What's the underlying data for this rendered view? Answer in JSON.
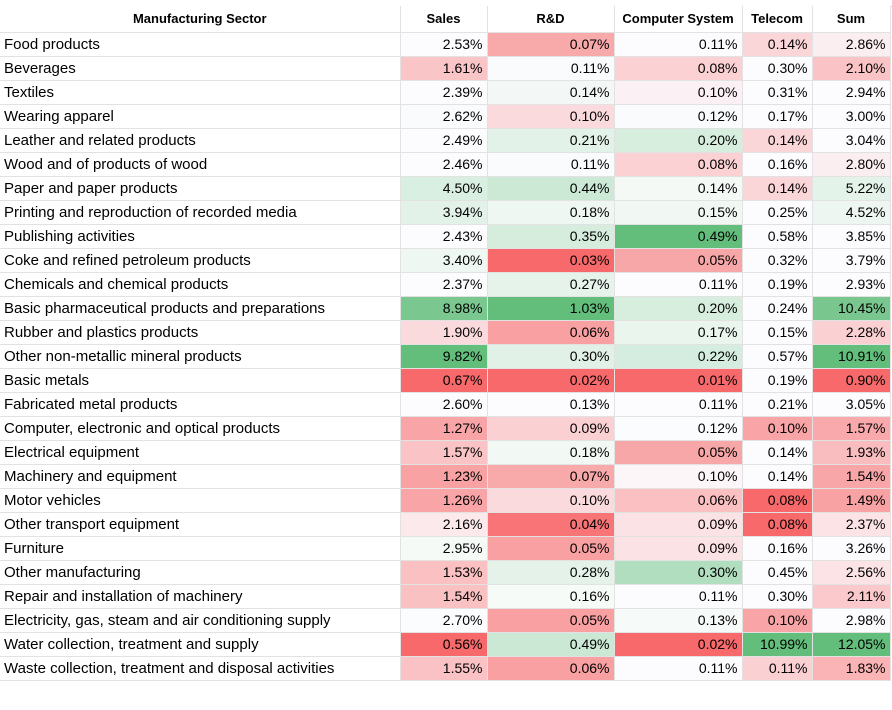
{
  "columns": [
    "Manufacturing Sector",
    "Sales",
    "R&D",
    "Computer System",
    "Telecom",
    "Sum"
  ],
  "rows": [
    {
      "sector": "Food products",
      "vals": [
        "2.53%",
        "0.07%",
        "0.11%",
        "0.14%",
        "2.86%"
      ],
      "bg": [
        "#fcfcff",
        "#f8a9aa",
        "#fcfcff",
        "#fbd6d8",
        "#fbeef1"
      ]
    },
    {
      "sector": "Beverages",
      "vals": [
        "1.61%",
        "0.11%",
        "0.08%",
        "0.30%",
        "2.10%"
      ],
      "bg": [
        "#fac5c7",
        "#fafbfd",
        "#fbd1d3",
        "#fcfcff",
        "#fac3c5"
      ]
    },
    {
      "sector": "Textiles",
      "vals": [
        "2.39%",
        "0.14%",
        "0.10%",
        "0.31%",
        "2.94%"
      ],
      "bg": [
        "#fcfbfe",
        "#f3f8f6",
        "#fbf1f4",
        "#fcfcff",
        "#fcfcff"
      ]
    },
    {
      "sector": "Wearing apparel",
      "vals": [
        "2.62%",
        "0.10%",
        "0.12%",
        "0.17%",
        "3.00%"
      ],
      "bg": [
        "#f9fbfc",
        "#fbdadd",
        "#f9fbfc",
        "#fcfcff",
        "#fcfcff"
      ]
    },
    {
      "sector": "Leather and related products",
      "vals": [
        "2.49%",
        "0.21%",
        "0.20%",
        "0.14%",
        "3.04%"
      ],
      "bg": [
        "#fcfcff",
        "#e3f2e8",
        "#d7eedf",
        "#fbd6d8",
        "#fcfcff"
      ]
    },
    {
      "sector": "Wood and of products of wood",
      "vals": [
        "2.46%",
        "0.11%",
        "0.08%",
        "0.16%",
        "2.80%"
      ],
      "bg": [
        "#fcfcff",
        "#fafbfd",
        "#fbd1d3",
        "#fcfcff",
        "#fbeef1"
      ]
    },
    {
      "sector": "Paper and paper products",
      "vals": [
        "4.50%",
        "0.44%",
        "0.14%",
        "0.14%",
        "5.22%"
      ],
      "bg": [
        "#d9efe1",
        "#cce9d6",
        "#f4f9f6",
        "#fbd6d8",
        "#e4f3ea"
      ]
    },
    {
      "sector": "Printing and reproduction of recorded media",
      "vals": [
        "3.94%",
        "0.18%",
        "0.15%",
        "0.25%",
        "4.52%"
      ],
      "bg": [
        "#e3f2e8",
        "#eef7f1",
        "#f1f8f4",
        "#fcfcff",
        "#edf6f1"
      ]
    },
    {
      "sector": "Publishing activities",
      "vals": [
        "2.43%",
        "0.35%",
        "0.49%",
        "0.58%",
        "3.85%"
      ],
      "bg": [
        "#fcfcff",
        "#d6edde",
        "#63be7b",
        "#fcfcff",
        "#fcfcff"
      ]
    },
    {
      "sector": "Coke and refined petroleum products",
      "vals": [
        "3.40%",
        "0.03%",
        "0.05%",
        "0.32%",
        "3.79%"
      ],
      "bg": [
        "#eef7f1",
        "#f8696b",
        "#f8a7a9",
        "#fcfcff",
        "#fcfcff"
      ]
    },
    {
      "sector": "Chemicals and chemical products",
      "vals": [
        "2.37%",
        "0.27%",
        "0.11%",
        "0.19%",
        "2.93%"
      ],
      "bg": [
        "#fcfcff",
        "#e6f3eb",
        "#fcfcff",
        "#fcfcff",
        "#fcfcff"
      ]
    },
    {
      "sector": "Basic pharmaceutical products and preparations",
      "vals": [
        "8.98%",
        "1.03%",
        "0.20%",
        "0.24%",
        "10.45%"
      ],
      "bg": [
        "#7ac88f",
        "#63be7b",
        "#d7eedf",
        "#fcfcff",
        "#79c78e"
      ]
    },
    {
      "sector": "Rubber and plastics products",
      "vals": [
        "1.90%",
        "0.06%",
        "0.17%",
        "0.15%",
        "2.28%"
      ],
      "bg": [
        "#fbdadd",
        "#f8a0a2",
        "#eaf5ee",
        "#fcfcff",
        "#fad0d2"
      ]
    },
    {
      "sector": "Other non-metallic mineral products",
      "vals": [
        "9.82%",
        "0.30%",
        "0.22%",
        "0.57%",
        "10.91%"
      ],
      "bg": [
        "#63be7b",
        "#e2f1e7",
        "#d5ede0",
        "#fcfcff",
        "#63be7b"
      ]
    },
    {
      "sector": "Basic metals",
      "vals": [
        "0.67%",
        "0.02%",
        "0.01%",
        "0.19%",
        "0.90%"
      ],
      "bg": [
        "#f8696b",
        "#f8696b",
        "#f8696b",
        "#fcfcff",
        "#f8696b"
      ]
    },
    {
      "sector": "Fabricated metal products",
      "vals": [
        "2.60%",
        "0.13%",
        "0.11%",
        "0.21%",
        "3.05%"
      ],
      "bg": [
        "#fcfcff",
        "#fcfcff",
        "#fcfcff",
        "#fcfcff",
        "#fcfcff"
      ]
    },
    {
      "sector": "Computer, electronic and optical products",
      "vals": [
        "1.27%",
        "0.09%",
        "0.12%",
        "0.10%",
        "1.57%"
      ],
      "bg": [
        "#f9a5a7",
        "#fbd0d3",
        "#fafcfd",
        "#f9a5a7",
        "#f9a9ab"
      ]
    },
    {
      "sector": "Electrical equipment",
      "vals": [
        "1.57%",
        "0.18%",
        "0.05%",
        "0.14%",
        "1.93%"
      ],
      "bg": [
        "#fac3c5",
        "#f2f8f4",
        "#f8a7a9",
        "#fcfcff",
        "#fabdbf"
      ]
    },
    {
      "sector": "Machinery and equipment",
      "vals": [
        "1.23%",
        "0.07%",
        "0.10%",
        "0.14%",
        "1.54%"
      ],
      "bg": [
        "#f9a2a4",
        "#f8a9aa",
        "#fcf6f8",
        "#fcfcff",
        "#f9a6a8"
      ]
    },
    {
      "sector": "Motor vehicles",
      "vals": [
        "1.26%",
        "0.10%",
        "0.06%",
        "0.08%",
        "1.49%"
      ],
      "bg": [
        "#f9a4a6",
        "#fbdadd",
        "#fbc0c2",
        "#f8696b",
        "#f9a2a4"
      ]
    },
    {
      "sector": "Other transport equipment",
      "vals": [
        "2.16%",
        "0.04%",
        "0.09%",
        "0.08%",
        "2.37%"
      ],
      "bg": [
        "#fbe9ec",
        "#f87476",
        "#fbe2e5",
        "#f8696b",
        "#fbe3e6"
      ]
    },
    {
      "sector": "Furniture",
      "vals": [
        "2.95%",
        "0.05%",
        "0.09%",
        "0.16%",
        "3.26%"
      ],
      "bg": [
        "#f5faf7",
        "#f8a0a2",
        "#fbe2e5",
        "#fcfcff",
        "#fcfcff"
      ]
    },
    {
      "sector": "Other manufacturing",
      "vals": [
        "1.53%",
        "0.28%",
        "0.30%",
        "0.45%",
        "2.56%"
      ],
      "bg": [
        "#fac0c2",
        "#e4f2e9",
        "#b2dec0",
        "#fcfcff",
        "#fbe3e6"
      ]
    },
    {
      "sector": "Repair and installation of machinery",
      "vals": [
        "1.54%",
        "0.16%",
        "0.11%",
        "0.30%",
        "2.11%"
      ],
      "bg": [
        "#fac1c3",
        "#f7fbf8",
        "#fcfcff",
        "#fcfcff",
        "#fbc9cb"
      ]
    },
    {
      "sector": "Electricity, gas, steam and air conditioning supply",
      "vals": [
        "2.70%",
        "0.05%",
        "0.13%",
        "0.10%",
        "2.98%"
      ],
      "bg": [
        "#fafcfd",
        "#f8a0a2",
        "#f6faf8",
        "#f9a5a7",
        "#fcfcff"
      ]
    },
    {
      "sector": "Water collection, treatment and supply",
      "vals": [
        "0.56%",
        "0.49%",
        "0.02%",
        "10.99%",
        "12.05%"
      ],
      "bg": [
        "#f8696b",
        "#cbe8d5",
        "#f8696b",
        "#63be7b",
        "#63be7b"
      ]
    },
    {
      "sector": "Waste collection, treatment and disposal activities",
      "vals": [
        "1.55%",
        "0.06%",
        "0.11%",
        "0.11%",
        "1.83%"
      ],
      "bg": [
        "#fac2c4",
        "#f8a0a2",
        "#fcfcff",
        "#fbd0d3",
        "#fab4b6"
      ]
    }
  ]
}
